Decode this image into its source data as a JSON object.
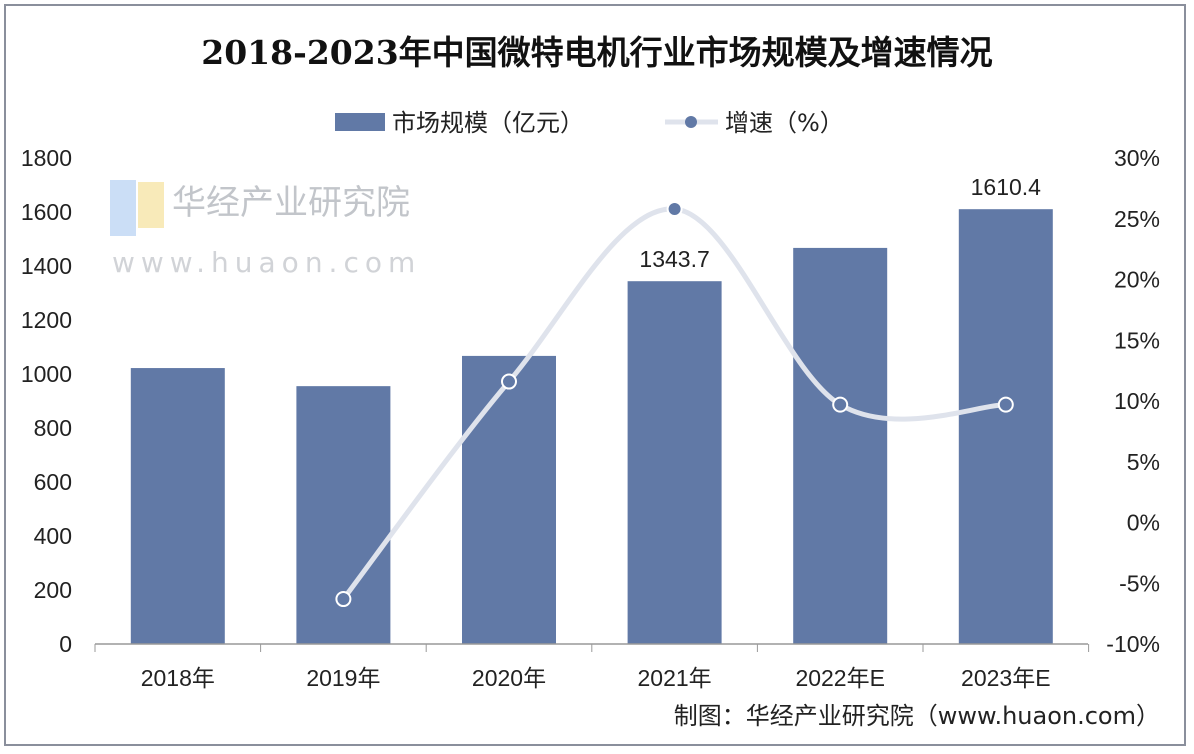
{
  "chart_data": {
    "type": "bar+line",
    "title": "2018-2023年中国微特电机行业市场规模及增速情况",
    "categories": [
      "2018年",
      "2019年",
      "2020年",
      "2021年",
      "2022年E",
      "2023年E"
    ],
    "series": [
      {
        "name": "市场规模（亿元）",
        "type": "bar",
        "axis": "left",
        "values": [
          1022,
          955,
          1067,
          1343.7,
          1467,
          1610.4
        ],
        "color": "#6179a6"
      },
      {
        "name": "增速（%）",
        "type": "line",
        "axis": "right",
        "values": [
          null,
          -6.3,
          11.6,
          25.8,
          9.7,
          9.7
        ],
        "color": "#dfe3ec",
        "marker_color": "#6179a6"
      }
    ],
    "data_labels": {
      "3": "1343.7",
      "5": "1610.4"
    },
    "left_axis": {
      "ylim": [
        0,
        1800
      ],
      "ticks": [
        "0",
        "200",
        "400",
        "600",
        "800",
        "1000",
        "1200",
        "1400",
        "1600",
        "1800"
      ]
    },
    "right_axis": {
      "ylim": [
        -10,
        30
      ],
      "ticks": [
        "-10%",
        "-5%",
        "0%",
        "5%",
        "10%",
        "15%",
        "20%",
        "25%",
        "30%"
      ]
    },
    "legend_position": "top",
    "grid": false
  },
  "watermark": {
    "brand": "华经产业研究院",
    "url": "www.huaon.com"
  },
  "source": "制图：华经产业研究院（www.huaon.com）"
}
